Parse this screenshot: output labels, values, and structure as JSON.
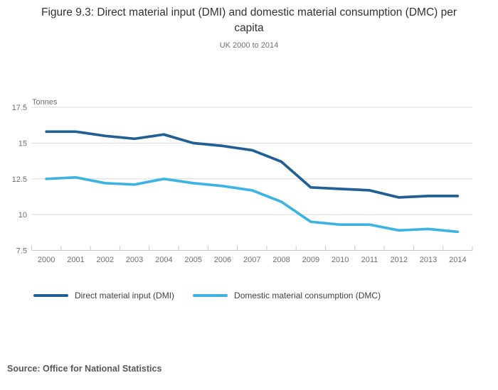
{
  "header": {
    "title": "Figure 9.3: Direct material input (DMI) and domestic material consumption (DMC) per capita",
    "subtitle": "UK 2000 to 2014"
  },
  "chart_data": {
    "type": "line",
    "unit_label": "Tonnes",
    "categories": [
      "2000",
      "2001",
      "2002",
      "2003",
      "2004",
      "2005",
      "2006",
      "2007",
      "2008",
      "2009",
      "2010",
      "2011",
      "2012",
      "2013",
      "2014"
    ],
    "series": [
      {
        "name": "Direct material input (DMI)",
        "color": "#206095",
        "values": [
          15.8,
          15.8,
          15.5,
          15.3,
          15.6,
          15.0,
          14.8,
          14.5,
          13.7,
          11.9,
          11.8,
          11.7,
          11.2,
          11.3,
          11.3
        ]
      },
      {
        "name": "Domestic material consumption (DMC)",
        "color": "#3bb4e3",
        "values": [
          12.5,
          12.6,
          12.2,
          12.1,
          12.5,
          12.2,
          12.0,
          11.7,
          10.9,
          9.5,
          9.3,
          9.3,
          8.9,
          9.0,
          8.8
        ]
      }
    ],
    "ylim": [
      7.5,
      17.5
    ],
    "yticks": [
      7.5,
      10,
      12.5,
      15,
      17.5
    ],
    "grid": "horizontal",
    "legend_position": "bottom",
    "colors": {
      "gridline": "#dadada",
      "axis": "#c6c8ca",
      "tick_label": "#6e6e6e"
    }
  },
  "footer": {
    "source": "Source: Office for National Statistics"
  }
}
